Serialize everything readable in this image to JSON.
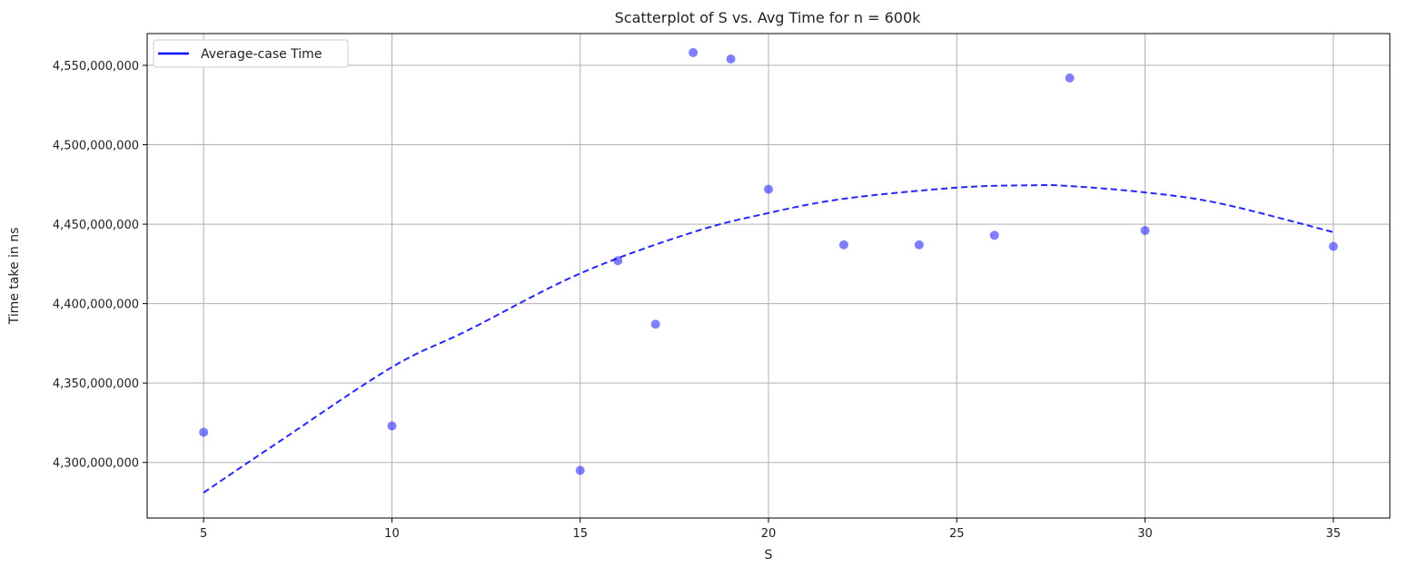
{
  "chart_data": {
    "type": "scatter",
    "title": "Scatterplot of S vs. Avg Time for n = 600k",
    "xlabel": "S",
    "ylabel": "Time take in ns",
    "xlim": [
      3.5,
      36.5
    ],
    "ylim": [
      4265000000,
      4570000000
    ],
    "xticks": [
      5,
      10,
      15,
      20,
      25,
      30,
      35
    ],
    "yticks": [
      4300000000,
      4350000000,
      4400000000,
      4450000000,
      4500000000,
      4550000000
    ],
    "ytick_labels": [
      "4,300,000,000",
      "4,350,000,000",
      "4,400,000,000",
      "4,450,000,000",
      "4,500,000,000",
      "4,550,000,000"
    ],
    "grid": true,
    "legend_position": "top-left",
    "legend": [
      {
        "label": "Average-case Time",
        "color": "#0000ff",
        "style": "solid"
      }
    ],
    "scatter": {
      "color": "#0000ff",
      "opacity": 0.5,
      "points": [
        {
          "x": 5,
          "y": 4319000000
        },
        {
          "x": 10,
          "y": 4323000000
        },
        {
          "x": 15,
          "y": 4295000000
        },
        {
          "x": 16,
          "y": 4427000000
        },
        {
          "x": 17,
          "y": 4387000000
        },
        {
          "x": 18,
          "y": 4558000000
        },
        {
          "x": 19,
          "y": 4554000000
        },
        {
          "x": 20,
          "y": 4472000000
        },
        {
          "x": 22,
          "y": 4437000000
        },
        {
          "x": 24,
          "y": 4437000000
        },
        {
          "x": 26,
          "y": 4443000000
        },
        {
          "x": 28,
          "y": 4542000000
        },
        {
          "x": 30,
          "y": 4446000000
        },
        {
          "x": 35,
          "y": 4436000000
        }
      ]
    },
    "trend": {
      "color": "#0000ff",
      "style": "dashed",
      "points": [
        {
          "x": 5,
          "y": 4281000000
        },
        {
          "x": 7,
          "y": 4313000000
        },
        {
          "x": 10,
          "y": 4360000000
        },
        {
          "x": 12,
          "y": 4383000000
        },
        {
          "x": 15,
          "y": 4419000000
        },
        {
          "x": 18,
          "y": 4445000000
        },
        {
          "x": 20,
          "y": 4457000000
        },
        {
          "x": 22,
          "y": 4466000000
        },
        {
          "x": 25,
          "y": 4473000000
        },
        {
          "x": 27,
          "y": 4474500000
        },
        {
          "x": 28,
          "y": 4474000000
        },
        {
          "x": 30,
          "y": 4470000000
        },
        {
          "x": 32,
          "y": 4463000000
        },
        {
          "x": 35,
          "y": 4445000000
        }
      ]
    }
  }
}
